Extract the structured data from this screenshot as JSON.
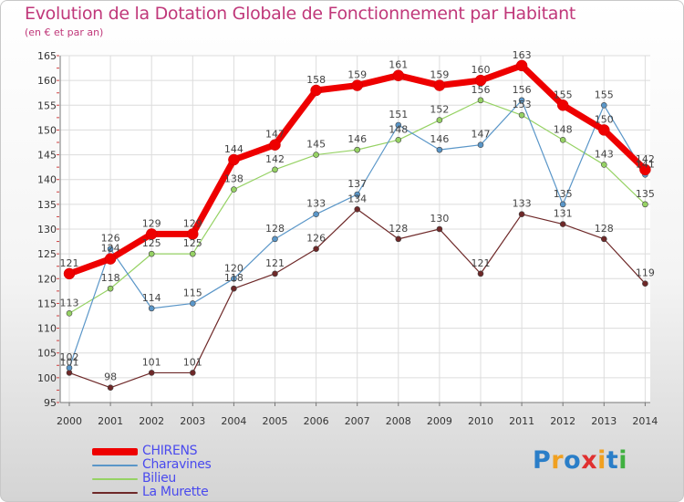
{
  "header": {
    "title": "Evolution de la Dotation Globale de Fonctionnement par Habitant",
    "subtitle": "(en € et par an)"
  },
  "chart_data": {
    "type": "line",
    "title": "Evolution de la Dotation Globale de Fonctionnement par Habitant",
    "subtitle": "(en € et par an)",
    "xlabel": "",
    "ylabel": "",
    "x": [
      2000,
      2001,
      2002,
      2003,
      2004,
      2005,
      2006,
      2007,
      2008,
      2009,
      2010,
      2011,
      2012,
      2013,
      2014
    ],
    "ylim": [
      95,
      165
    ],
    "yticks": [
      95,
      100,
      105,
      110,
      115,
      120,
      125,
      130,
      135,
      140,
      145,
      150,
      155,
      160,
      165
    ],
    "grid": true,
    "legend_position": "bottom-left",
    "series": [
      {
        "name": "CHIRENS",
        "color": "#ee0000",
        "values": [
          121,
          124,
          129,
          129,
          144,
          147,
          158,
          159,
          161,
          159,
          160,
          163,
          155,
          150,
          142
        ]
      },
      {
        "name": "Charavines",
        "color": "#5a96c8",
        "values": [
          102,
          126,
          114,
          115,
          120,
          128,
          133,
          137,
          151,
          146,
          147,
          156,
          135,
          155,
          141
        ]
      },
      {
        "name": "Bilieu",
        "color": "#96d264",
        "values": [
          113,
          118,
          125,
          125,
          138,
          142,
          145,
          146,
          148,
          152,
          156,
          153,
          148,
          143,
          135
        ]
      },
      {
        "name": "La Murette",
        "color": "#6e2828",
        "values": [
          101,
          98,
          101,
          101,
          118,
          121,
          126,
          134,
          128,
          130,
          121,
          133,
          131,
          128,
          119
        ]
      }
    ]
  },
  "logo": {
    "letters": [
      "P",
      "r",
      "o",
      "x",
      "i",
      "t",
      "i"
    ],
    "colors": [
      "#2a7ec8",
      "#f0a020",
      "#2a7ec8",
      "#e03030",
      "#f0a020",
      "#2a7ec8",
      "#40b040"
    ]
  }
}
